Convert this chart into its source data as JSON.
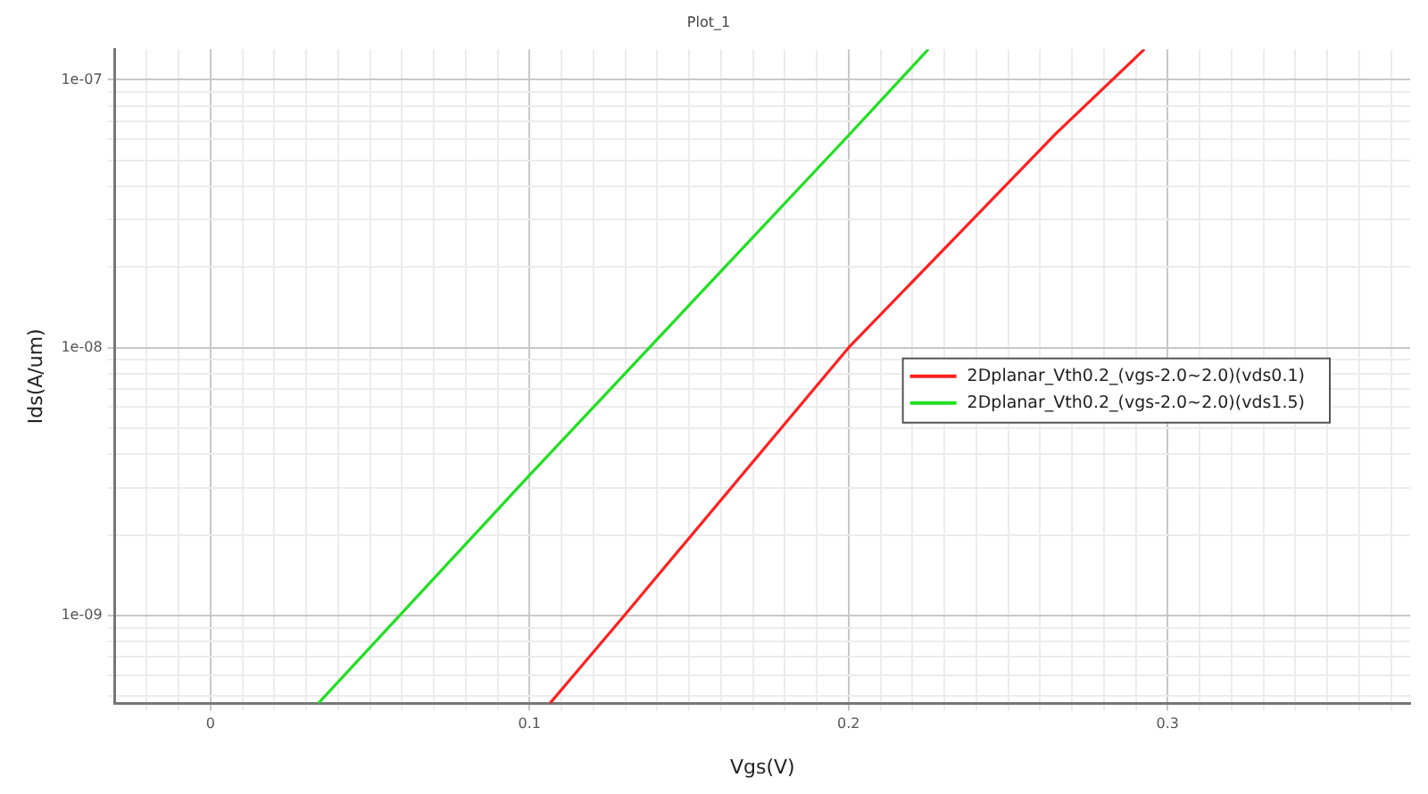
{
  "chart_data": {
    "type": "line",
    "title": "Plot_1",
    "xlabel": "Vgs(V)",
    "ylabel": "Ids(A/um)",
    "log": "y",
    "grid": true,
    "legend": "right",
    "marker": "none",
    "line_style": "solid",
    "xlim": [
      -0.03,
      0.376
    ],
    "ylim": [
      4.7e-10,
      1.3e-07
    ],
    "xticks": [
      {
        "value": -0.02,
        "label": null
      },
      {
        "value": -0.01,
        "label": null
      },
      {
        "value": 0,
        "label": "0"
      },
      {
        "value": 0.01,
        "label": null
      },
      {
        "value": 0.02,
        "label": null
      },
      {
        "value": 0.03,
        "label": null
      },
      {
        "value": 0.04,
        "label": null
      },
      {
        "value": 0.05,
        "label": null
      },
      {
        "value": 0.06,
        "label": null
      },
      {
        "value": 0.07,
        "label": null
      },
      {
        "value": 0.08,
        "label": null
      },
      {
        "value": 0.09,
        "label": null
      },
      {
        "value": 0.1,
        "label": "0.1"
      },
      {
        "value": 0.11,
        "label": null
      },
      {
        "value": 0.12,
        "label": null
      },
      {
        "value": 0.13,
        "label": null
      },
      {
        "value": 0.14,
        "label": null
      },
      {
        "value": 0.15,
        "label": null
      },
      {
        "value": 0.16,
        "label": null
      },
      {
        "value": 0.17,
        "label": null
      },
      {
        "value": 0.18,
        "label": null
      },
      {
        "value": 0.19,
        "label": null
      },
      {
        "value": 0.2,
        "label": "0.2"
      },
      {
        "value": 0.21,
        "label": null
      },
      {
        "value": 0.22,
        "label": null
      },
      {
        "value": 0.23,
        "label": null
      },
      {
        "value": 0.24,
        "label": null
      },
      {
        "value": 0.25,
        "label": null
      },
      {
        "value": 0.26,
        "label": null
      },
      {
        "value": 0.27,
        "label": null
      },
      {
        "value": 0.28,
        "label": null
      },
      {
        "value": 0.29,
        "label": null
      },
      {
        "value": 0.3,
        "label": "0.3"
      },
      {
        "value": 0.31,
        "label": null
      },
      {
        "value": 0.32,
        "label": null
      },
      {
        "value": 0.33,
        "label": null
      },
      {
        "value": 0.34,
        "label": null
      },
      {
        "value": 0.35,
        "label": null
      },
      {
        "value": 0.36,
        "label": null
      },
      {
        "value": 0.37,
        "label": null
      }
    ],
    "yticks": [
      {
        "value": 5e-10,
        "label": null
      },
      {
        "value": 6e-10,
        "label": null
      },
      {
        "value": 7e-10,
        "label": null
      },
      {
        "value": 8e-10,
        "label": null
      },
      {
        "value": 9e-10,
        "label": null
      },
      {
        "value": 1e-09,
        "label": "1e-09"
      },
      {
        "value": 2e-09,
        "label": null
      },
      {
        "value": 3e-09,
        "label": null
      },
      {
        "value": 4e-09,
        "label": null
      },
      {
        "value": 5e-09,
        "label": null
      },
      {
        "value": 6e-09,
        "label": null
      },
      {
        "value": 7e-09,
        "label": null
      },
      {
        "value": 8e-09,
        "label": null
      },
      {
        "value": 9e-09,
        "label": null
      },
      {
        "value": 1e-08,
        "label": "1e-08"
      },
      {
        "value": 2e-08,
        "label": null
      },
      {
        "value": 3e-08,
        "label": null
      },
      {
        "value": 4e-08,
        "label": null
      },
      {
        "value": 5e-08,
        "label": null
      },
      {
        "value": 6e-08,
        "label": null
      },
      {
        "value": 7e-08,
        "label": null
      },
      {
        "value": 8e-08,
        "label": null
      },
      {
        "value": 9e-08,
        "label": null
      },
      {
        "value": 1e-07,
        "label": "1e-07"
      }
    ],
    "series": [
      {
        "name": "2Dplanar_Vth0.2_(vgs-2.0~2.0)(vds0.1)",
        "color": "#ff2020",
        "x": [
          0.1064,
          0.1297,
          0.2,
          0.265,
          0.2927
        ],
        "values": [
          4.7e-10,
          1e-09,
          1e-08,
          6.3e-08,
          1.3e-07
        ]
      },
      {
        "name": "2Dplanar_Vth0.2_(vgs-2.0~2.0)(vds1.5)",
        "color": "#20e020",
        "x": [
          0.0338,
          0.1,
          0.2,
          0.225
        ],
        "values": [
          4.7e-10,
          3.34e-09,
          6.2e-08,
          1.3e-07
        ]
      }
    ]
  }
}
